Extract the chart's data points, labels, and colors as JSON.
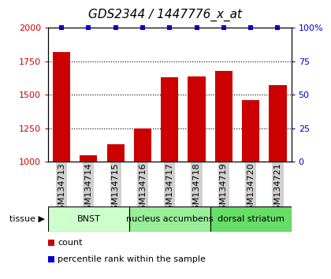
{
  "title": "GDS2344 / 1447776_x_at",
  "samples": [
    "GSM134713",
    "GSM134714",
    "GSM134715",
    "GSM134716",
    "GSM134717",
    "GSM134718",
    "GSM134719",
    "GSM134720",
    "GSM134721"
  ],
  "counts": [
    1820,
    1050,
    1130,
    1250,
    1630,
    1640,
    1680,
    1460,
    1570
  ],
  "percentiles": [
    100,
    100,
    100,
    100,
    100,
    100,
    100,
    100,
    100
  ],
  "ylim_left": [
    1000,
    2000
  ],
  "ylim_right": [
    0,
    100
  ],
  "yticks_left": [
    1000,
    1250,
    1500,
    1750,
    2000
  ],
  "yticks_right": [
    0,
    25,
    50,
    75,
    100
  ],
  "ytick_labels_right": [
    "0",
    "25",
    "50",
    "75",
    "100%"
  ],
  "bar_color": "#cc0000",
  "dot_color": "#0000cc",
  "tissue_groups": [
    {
      "label": "BNST",
      "start": 0,
      "end": 3,
      "color": "#ccffcc"
    },
    {
      "label": "nucleus accumbens",
      "start": 3,
      "end": 6,
      "color": "#99ee99"
    },
    {
      "label": "dorsal striatum",
      "start": 6,
      "end": 9,
      "color": "#66dd66"
    }
  ],
  "tissue_label": "tissue",
  "legend_items": [
    {
      "label": "count",
      "color": "#cc0000"
    },
    {
      "label": "percentile rank within the sample",
      "color": "#0000cc"
    }
  ],
  "bar_width": 0.65,
  "grid_color": "#000000",
  "title_fontsize": 11,
  "tick_fontsize": 8,
  "sample_label_bg": "#d0d0d0",
  "fig_width": 4.2,
  "fig_height": 3.54,
  "dpi": 100
}
